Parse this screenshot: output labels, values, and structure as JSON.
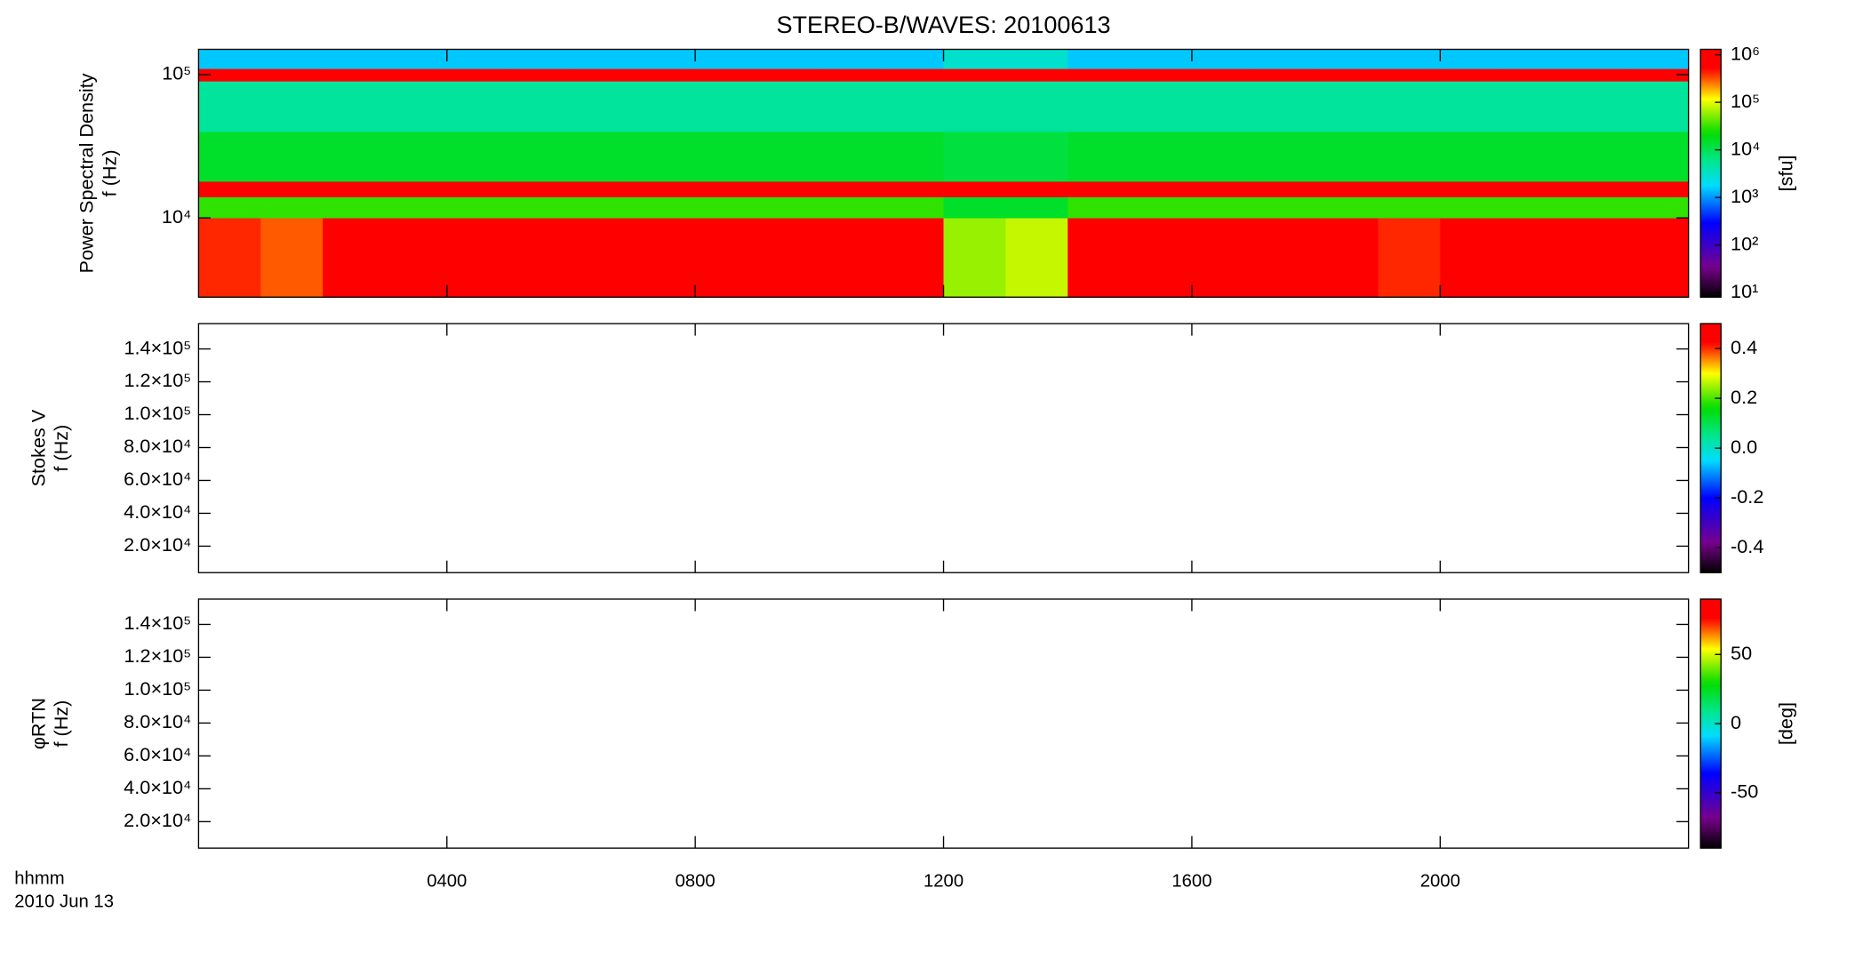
{
  "title": "STEREO-B/WAVES: 20100613",
  "x_label": "hhmm",
  "date_label": "2010 Jun 13",
  "xlim": [
    0,
    24
  ],
  "xticks": [
    {
      "value": 4,
      "label": "0400"
    },
    {
      "value": 8,
      "label": "0800"
    },
    {
      "value": 12,
      "label": "1200"
    },
    {
      "value": 16,
      "label": "1600"
    },
    {
      "value": 20,
      "label": "2000"
    }
  ],
  "chart_data": [
    {
      "type": "heatmap",
      "ylabel": [
        "Power Spectral Density",
        "f (Hz)"
      ],
      "log_y": true,
      "ylim": [
        2800,
        150000
      ],
      "yticks": [
        {
          "value": 10000,
          "label": "10⁴"
        },
        {
          "value": 100000,
          "label": "10⁵"
        }
      ],
      "x_bins": [
        0,
        1,
        2,
        3,
        4,
        5,
        6,
        7,
        8,
        9,
        10,
        11,
        12,
        13,
        14,
        15,
        16,
        17,
        18,
        19,
        20,
        21,
        22,
        23,
        24
      ],
      "y_bins": [
        2800,
        10000,
        14000,
        18000,
        40000,
        90000,
        110000,
        150000
      ],
      "values": [
        [
          400000,
          300000,
          600000,
          1000000,
          1000000,
          1000000,
          1000000,
          1000000,
          1000000,
          1000000,
          1000000,
          1000000,
          60000,
          80000,
          1000000,
          1000000,
          1000000,
          1000000,
          1000000,
          400000,
          1000000,
          1000000,
          500000,
          1000000
        ],
        [
          30000,
          30000,
          30000,
          30000,
          30000,
          30000,
          30000,
          30000,
          30000,
          30000,
          30000,
          30000,
          15000,
          15000,
          30000,
          30000,
          30000,
          30000,
          30000,
          30000,
          30000,
          30000,
          30000,
          30000
        ],
        [
          1000000,
          1000000,
          1000000,
          1000000,
          1000000,
          1000000,
          1000000,
          1000000,
          1000000,
          1000000,
          1000000,
          1000000,
          600000,
          600000,
          1000000,
          1000000,
          1000000,
          1000000,
          1000000,
          1000000,
          1000000,
          1000000,
          1000000,
          1000000
        ],
        [
          15000,
          15000,
          15000,
          15000,
          15000,
          15000,
          15000,
          15000,
          15000,
          15000,
          15000,
          15000,
          12000,
          12000,
          15000,
          15000,
          15000,
          15000,
          15000,
          15000,
          15000,
          15000,
          15000,
          15000
        ],
        [
          5000,
          5000,
          5000,
          5000,
          5000,
          5000,
          5000,
          5000,
          5000,
          5000,
          5000,
          5000,
          5000,
          5000,
          5000,
          5000,
          5000,
          5000,
          5000,
          5000,
          5000,
          5000,
          5000,
          5000
        ],
        [
          1000000,
          1000000,
          1000000,
          1000000,
          1000000,
          1000000,
          1000000,
          1000000,
          1000000,
          1000000,
          1000000,
          1000000,
          1000000,
          1000000,
          1000000,
          1000000,
          1000000,
          1000000,
          1000000,
          1000000,
          1000000,
          1000000,
          1000000,
          1000000
        ],
        [
          1500,
          1500,
          1500,
          1500,
          1500,
          1500,
          1500,
          1500,
          1500,
          1500,
          1500,
          1500,
          3000,
          3000,
          1500,
          1500,
          1500,
          1500,
          1500,
          1500,
          1500,
          1500,
          1500,
          1500
        ]
      ],
      "colormap": "rainbow",
      "colorbar": {
        "label": "[sfu]",
        "log": true,
        "clim": [
          8,
          1300000
        ],
        "ticks": [
          {
            "value": 10,
            "label": "10¹"
          },
          {
            "value": 100,
            "label": "10²"
          },
          {
            "value": 1000,
            "label": "10³"
          },
          {
            "value": 10000,
            "label": "10⁴"
          },
          {
            "value": 100000,
            "label": "10⁵"
          },
          {
            "value": 1000000,
            "label": "10⁶"
          }
        ]
      }
    },
    {
      "type": "heatmap",
      "ylabel": [
        "Stokes V",
        "f (Hz)"
      ],
      "log_y": false,
      "ylim": [
        3900,
        155400
      ],
      "yticks": [
        {
          "value": 20000,
          "label": "2.0×10⁴"
        },
        {
          "value": 40000,
          "label": "4.0×10⁴"
        },
        {
          "value": 60000,
          "label": "6.0×10⁴"
        },
        {
          "value": 80000,
          "label": "8.0×10⁴"
        },
        {
          "value": 100000,
          "label": "1.0×10⁵"
        },
        {
          "value": 120000,
          "label": "1.2×10⁵"
        },
        {
          "value": 140000,
          "label": "1.4×10⁵"
        }
      ],
      "x_bins": [],
      "y_bins": [],
      "values": [],
      "colormap": "rainbow",
      "colorbar": {
        "log": false,
        "clim": [
          -0.5,
          0.5
        ],
        "ticks": [
          -0.4,
          {
            "value": -0.2,
            "label": "-0.2"
          },
          {
            "value": 0,
            "label": "0.0"
          },
          0.2,
          0.4
        ]
      }
    },
    {
      "type": "heatmap",
      "ylabel": [
        "φRTN",
        "f (Hz)"
      ],
      "log_y": false,
      "ylim": [
        3900,
        155400
      ],
      "yticks": [
        {
          "value": 20000,
          "label": "2.0×10⁴"
        },
        {
          "value": 40000,
          "label": "4.0×10⁴"
        },
        {
          "value": 60000,
          "label": "6.0×10⁴"
        },
        {
          "value": 80000,
          "label": "8.0×10⁴"
        },
        {
          "value": 100000,
          "label": "1.0×10⁵"
        },
        {
          "value": 120000,
          "label": "1.2×10⁵"
        },
        {
          "value": 140000,
          "label": "1.4×10⁵"
        }
      ],
      "x_bins": [],
      "y_bins": [],
      "values": [],
      "colormap": "rainbow",
      "colorbar": {
        "label": "[deg]",
        "log": false,
        "clim": [
          -90,
          90
        ],
        "ticks": [
          -50,
          0,
          50
        ]
      }
    }
  ]
}
